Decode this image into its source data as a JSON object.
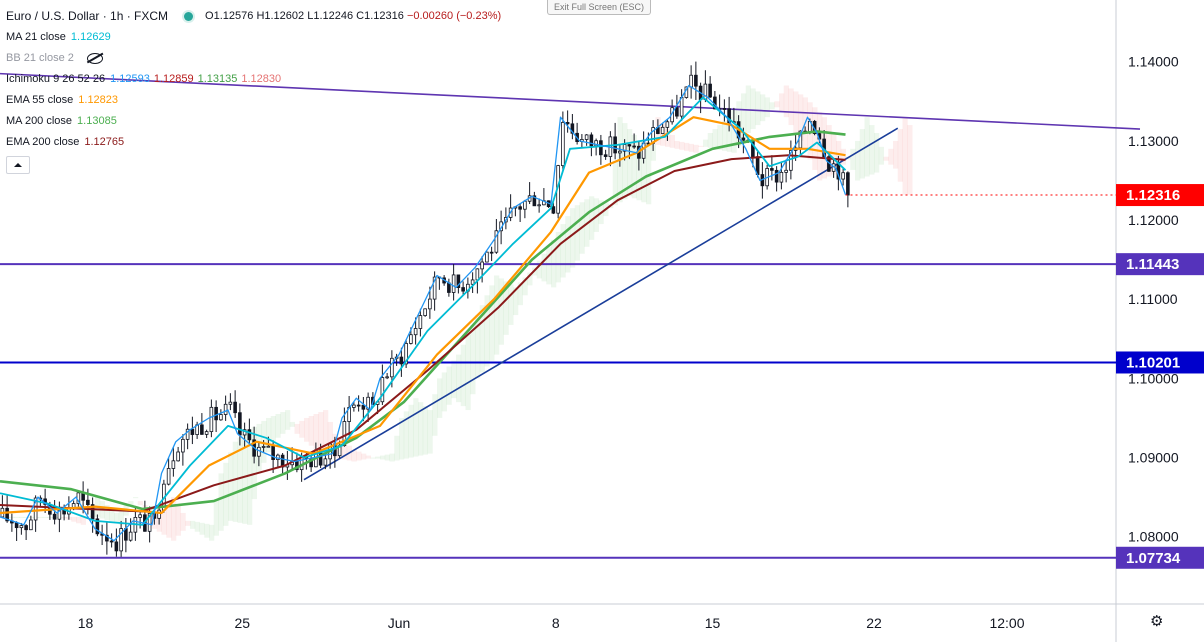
{
  "header": {
    "symbol": "Euro / U.S. Dollar · 1h · FXCM",
    "open": "O1.12576",
    "high": "H1.12602",
    "low": "L1.12246",
    "close": "C1.12316",
    "change": "−0.00260 (−0.23%)",
    "exit_fullscreen": "Exit Full Screen (ESC)"
  },
  "indicators": [
    {
      "name": "MA 21 close",
      "values": [
        "1.12629"
      ],
      "color": "#00bcd4"
    },
    {
      "name": "BB 21 close 2",
      "values": [],
      "color": "#9598a1",
      "hidden": true
    },
    {
      "name": "Ichimoku 9 26 52 26",
      "values": [
        "1.12593",
        "1.12859",
        "1.13135",
        "1.12830"
      ],
      "value_colors": [
        "#2196f3",
        "#b71c1c",
        "#43a047",
        "#e57373"
      ]
    },
    {
      "name": "EMA 55 close",
      "values": [
        "1.12823"
      ],
      "color": "#ff9800"
    },
    {
      "name": "MA 200 close",
      "values": [
        "1.13085"
      ],
      "color": "#4caf50"
    },
    {
      "name": "EMA 200 close",
      "values": [
        "1.12765"
      ],
      "color": "#8b1a1a"
    }
  ],
  "colors": {
    "up": "#26a69a",
    "down": "#ef5350",
    "candle": "#131722",
    "ma21": "#00bcd4",
    "tenkan": "#2196f3",
    "ema55": "#ff9800",
    "ma200": "#4caf50",
    "ema200": "#8b1a1a",
    "trend": "#1a3e9a",
    "resistance": "#5e35b1",
    "level_price": "#0000cc",
    "support_line": "#5533bb"
  },
  "chart_data": {
    "type": "candlestick",
    "title": "Euro / U.S. Dollar · 1h · FXCM",
    "ylim": [
      1.0715,
      1.1478
    ],
    "y_ticks": [
      "1.08000",
      "1.09000",
      "1.10000",
      "1.11000",
      "1.12000",
      "1.13000",
      "1.14000"
    ],
    "y_tick_values": [
      1.08,
      1.09,
      1.1,
      1.11,
      1.12,
      1.13,
      1.14
    ],
    "x_ticks": [
      "18",
      "25",
      "Jun",
      "8",
      "15",
      "22",
      "12:00"
    ],
    "x_tick_bars": [
      18,
      51,
      84,
      117,
      150,
      184,
      212
    ],
    "bar_count": 240,
    "last_bar": 178,
    "current_price": {
      "label": "1.12316",
      "value": 1.12316,
      "color": "#ff0000"
    },
    "horizontal_levels": [
      {
        "label": "1.11443",
        "value": 1.11443,
        "color": "#5533bb"
      },
      {
        "label": "1.10201",
        "value": 1.10201,
        "color": "#0000cc"
      },
      {
        "label": "1.07734",
        "value": 1.07734,
        "color": "#5533bb"
      }
    ],
    "trendlines": [
      {
        "name": "resistance",
        "from": [
          0,
          1.1385
        ],
        "to": [
          240,
          1.1315
        ]
      },
      {
        "name": "support",
        "from": [
          64,
          1.0872
        ],
        "to": [
          189,
          1.1316
        ]
      }
    ],
    "price_path": [
      [
        0,
        1.0825
      ],
      [
        5,
        1.0815
      ],
      [
        8,
        1.085
      ],
      [
        12,
        1.083
      ],
      [
        16,
        1.085
      ],
      [
        20,
        1.081
      ],
      [
        24,
        1.0795
      ],
      [
        28,
        1.082
      ],
      [
        32,
        1.0815
      ],
      [
        34,
        1.088
      ],
      [
        37,
        1.092
      ],
      [
        40,
        1.0935
      ],
      [
        44,
        1.095
      ],
      [
        48,
        1.096
      ],
      [
        50,
        1.093
      ],
      [
        54,
        1.091
      ],
      [
        58,
        1.09
      ],
      [
        62,
        1.0895
      ],
      [
        66,
        1.09
      ],
      [
        70,
        1.0905
      ],
      [
        72,
        1.095
      ],
      [
        75,
        1.0975
      ],
      [
        78,
        1.096
      ],
      [
        80,
        1.1
      ],
      [
        84,
        1.103
      ],
      [
        88,
        1.108
      ],
      [
        92,
        1.113
      ],
      [
        96,
        1.1115
      ],
      [
        100,
        1.114
      ],
      [
        104,
        1.1175
      ],
      [
        108,
        1.1215
      ],
      [
        112,
        1.123
      ],
      [
        116,
        1.122
      ],
      [
        118,
        1.133
      ],
      [
        122,
        1.13
      ],
      [
        126,
        1.1295
      ],
      [
        130,
        1.129
      ],
      [
        134,
        1.1285
      ],
      [
        137,
        1.131
      ],
      [
        141,
        1.133
      ],
      [
        145,
        1.137
      ],
      [
        149,
        1.1355
      ],
      [
        153,
        1.133
      ],
      [
        157,
        1.129
      ],
      [
        160,
        1.125
      ],
      [
        164,
        1.126
      ],
      [
        168,
        1.13
      ],
      [
        170,
        1.133
      ],
      [
        172,
        1.131
      ],
      [
        174,
        1.1275
      ],
      [
        176,
        1.1265
      ],
      [
        178,
        1.1232
      ]
    ],
    "ma21": [
      [
        0,
        1.0855
      ],
      [
        10,
        1.0842
      ],
      [
        20,
        1.082
      ],
      [
        30,
        1.0815
      ],
      [
        40,
        1.089
      ],
      [
        48,
        1.094
      ],
      [
        56,
        1.0925
      ],
      [
        64,
        1.09
      ],
      [
        72,
        1.0915
      ],
      [
        80,
        1.0975
      ],
      [
        90,
        1.106
      ],
      [
        100,
        1.112
      ],
      [
        108,
        1.117
      ],
      [
        116,
        1.1215
      ],
      [
        120,
        1.129
      ],
      [
        130,
        1.1295
      ],
      [
        140,
        1.1305
      ],
      [
        148,
        1.1355
      ],
      [
        156,
        1.1315
      ],
      [
        162,
        1.1268
      ],
      [
        168,
        1.128
      ],
      [
        172,
        1.1298
      ],
      [
        178,
        1.1263
      ]
    ],
    "ema55": [
      [
        0,
        1.083
      ],
      [
        20,
        1.0838
      ],
      [
        34,
        1.083
      ],
      [
        44,
        1.089
      ],
      [
        54,
        1.092
      ],
      [
        66,
        1.0905
      ],
      [
        80,
        1.094
      ],
      [
        92,
        1.103
      ],
      [
        104,
        1.11
      ],
      [
        116,
        1.1185
      ],
      [
        124,
        1.126
      ],
      [
        134,
        1.1285
      ],
      [
        146,
        1.133
      ],
      [
        154,
        1.132
      ],
      [
        162,
        1.129
      ],
      [
        170,
        1.129
      ],
      [
        178,
        1.1282
      ]
    ],
    "ma200": [
      [
        0,
        1.087
      ],
      [
        15,
        1.086
      ],
      [
        30,
        1.0835
      ],
      [
        45,
        1.0845
      ],
      [
        60,
        1.088
      ],
      [
        75,
        1.0925
      ],
      [
        85,
        1.097
      ],
      [
        100,
        1.107
      ],
      [
        112,
        1.115
      ],
      [
        124,
        1.121
      ],
      [
        136,
        1.1255
      ],
      [
        150,
        1.129
      ],
      [
        162,
        1.1305
      ],
      [
        172,
        1.1312
      ],
      [
        178,
        1.1308
      ]
    ],
    "ema200": [
      [
        0,
        1.084
      ],
      [
        15,
        1.0836
      ],
      [
        30,
        1.0832
      ],
      [
        45,
        1.0865
      ],
      [
        60,
        1.089
      ],
      [
        75,
        1.0935
      ],
      [
        90,
        1.101
      ],
      [
        105,
        1.109
      ],
      [
        118,
        1.117
      ],
      [
        130,
        1.1225
      ],
      [
        142,
        1.1262
      ],
      [
        154,
        1.1277
      ],
      [
        166,
        1.1282
      ],
      [
        178,
        1.1276
      ]
    ]
  }
}
